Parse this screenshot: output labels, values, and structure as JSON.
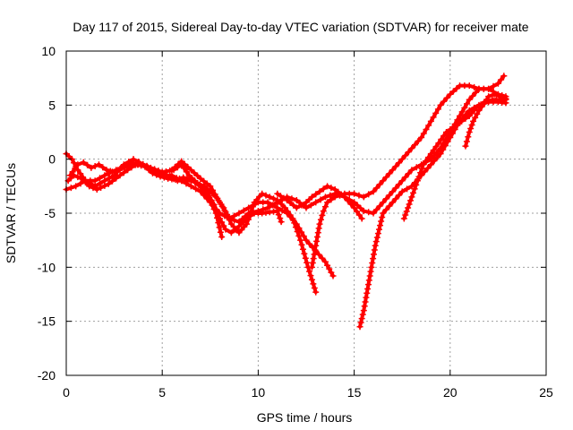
{
  "chart_data": {
    "type": "scatter",
    "title": "Day 117 of 2015, Sidereal Day-to-day VTEC variation (SDTVAR) for receiver mate",
    "xlabel": "GPS time / hours",
    "ylabel": "SDTVAR / TECUs",
    "xlim": [
      0,
      25
    ],
    "ylim": [
      -20,
      10
    ],
    "xticks": [
      0,
      5,
      10,
      15,
      20,
      25
    ],
    "yticks": [
      -20,
      -15,
      -10,
      -5,
      0,
      5,
      10
    ],
    "xtick_labels": [
      "0",
      "5",
      "10",
      "15",
      "20",
      "25"
    ],
    "ytick_labels": [
      "-20",
      "-15",
      "-10",
      "-5",
      "0",
      "5",
      "10"
    ],
    "grid": true,
    "marker": "+",
    "series": [
      {
        "color": "#ff0000",
        "tracks": [
          [
            [
              0.0,
              0.5
            ],
            [
              0.3,
              0.0
            ],
            [
              0.6,
              -1.0
            ],
            [
              1.0,
              -2.0
            ],
            [
              1.5,
              -2.5
            ],
            [
              2.0,
              -2.0
            ],
            [
              2.5,
              -1.5
            ],
            [
              3.0,
              -0.5
            ],
            [
              3.5,
              0.0
            ],
            [
              4.0,
              -0.5
            ],
            [
              4.5,
              -1.0
            ],
            [
              5.0,
              -1.5
            ],
            [
              5.5,
              -1.5
            ],
            [
              6.0,
              -2.0
            ],
            [
              6.5,
              -2.5
            ],
            [
              7.0,
              -3.0
            ],
            [
              7.5,
              -4.0
            ],
            [
              8.0,
              -5.0
            ],
            [
              8.5,
              -5.5
            ],
            [
              9.0,
              -5.0
            ],
            [
              9.5,
              -4.5
            ],
            [
              10.0,
              -4.0
            ],
            [
              10.5,
              -4.0
            ],
            [
              11.0,
              -4.5
            ],
            [
              11.5,
              -5.0
            ],
            [
              12.0,
              -6.0
            ],
            [
              12.5,
              -7.5
            ],
            [
              13.0,
              -8.5
            ],
            [
              13.5,
              -9.5
            ],
            [
              13.9,
              -10.8
            ]
          ],
          [
            [
              0.1,
              -2.0
            ],
            [
              0.4,
              -1.5
            ],
            [
              0.8,
              -1.8
            ],
            [
              1.2,
              -2.5
            ],
            [
              1.6,
              -2.8
            ],
            [
              2.2,
              -2.3
            ],
            [
              2.8,
              -1.5
            ],
            [
              3.2,
              -1.0
            ],
            [
              3.8,
              -0.3
            ],
            [
              4.4,
              -0.8
            ],
            [
              5.0,
              -1.2
            ],
            [
              5.6,
              -1.0
            ],
            [
              6.0,
              -0.5
            ],
            [
              6.4,
              -1.5
            ],
            [
              7.0,
              -2.5
            ],
            [
              7.4,
              -3.5
            ],
            [
              7.8,
              -5.0
            ],
            [
              8.1,
              -7.2
            ]
          ],
          [
            [
              0.0,
              -2.8
            ],
            [
              0.5,
              -2.5
            ],
            [
              1.0,
              -2.0
            ],
            [
              1.5,
              -2.0
            ],
            [
              2.0,
              -1.5
            ],
            [
              2.6,
              -1.0
            ],
            [
              3.0,
              -0.8
            ],
            [
              3.5,
              -0.5
            ],
            [
              4.0,
              -0.5
            ],
            [
              4.6,
              -1.0
            ],
            [
              5.2,
              -1.5
            ],
            [
              5.8,
              -2.0
            ],
            [
              6.5,
              -2.0
            ],
            [
              7.2,
              -2.5
            ],
            [
              7.8,
              -3.5
            ],
            [
              8.2,
              -4.5
            ],
            [
              8.6,
              -6.0
            ],
            [
              9.0,
              -6.8
            ],
            [
              9.4,
              -6.0
            ],
            [
              9.8,
              -4.0
            ],
            [
              10.2,
              -3.2
            ],
            [
              10.6,
              -3.5
            ],
            [
              11.0,
              -3.8
            ],
            [
              11.4,
              -4.5
            ],
            [
              11.8,
              -5.5
            ],
            [
              12.2,
              -7.5
            ],
            [
              12.6,
              -10.0
            ],
            [
              13.0,
              -12.3
            ]
          ],
          [
            [
              5.5,
              -1.0
            ],
            [
              6.0,
              -0.2
            ],
            [
              6.5,
              -1.0
            ],
            [
              7.0,
              -1.8
            ],
            [
              7.5,
              -2.5
            ],
            [
              8.0,
              -4.0
            ],
            [
              8.5,
              -5.5
            ],
            [
              9.0,
              -5.8
            ],
            [
              9.5,
              -5.0
            ],
            [
              10.0,
              -4.8
            ],
            [
              10.5,
              -4.5
            ],
            [
              11.0,
              -4.0
            ],
            [
              11.5,
              -3.5
            ],
            [
              12.0,
              -3.8
            ],
            [
              12.5,
              -4.5
            ],
            [
              13.0,
              -4.0
            ],
            [
              13.5,
              -3.5
            ],
            [
              14.0,
              -3.2
            ],
            [
              14.5,
              -3.5
            ],
            [
              15.0,
              -4.5
            ],
            [
              15.4,
              -5.5
            ]
          ],
          [
            [
              11.0,
              -3.2
            ],
            [
              11.5,
              -3.8
            ],
            [
              12.0,
              -4.5
            ],
            [
              12.5,
              -4.0
            ],
            [
              12.8,
              -3.5
            ],
            [
              13.2,
              -3.0
            ],
            [
              13.6,
              -2.5
            ],
            [
              14.0,
              -2.8
            ],
            [
              14.5,
              -3.5
            ],
            [
              15.0,
              -4.0
            ],
            [
              15.5,
              -4.8
            ],
            [
              16.0,
              -5.0
            ],
            [
              16.5,
              -4.0
            ],
            [
              17.0,
              -3.0
            ],
            [
              17.5,
              -2.0
            ],
            [
              18.0,
              -1.0
            ],
            [
              18.5,
              -0.5
            ],
            [
              19.0,
              0.0
            ],
            [
              19.5,
              1.0
            ],
            [
              20.0,
              2.5
            ],
            [
              20.5,
              4.0
            ],
            [
              21.0,
              5.5
            ],
            [
              21.5,
              6.5
            ],
            [
              22.0,
              6.5
            ],
            [
              22.5,
              6.0
            ],
            [
              22.9,
              5.8
            ]
          ],
          [
            [
              12.8,
              -10.0
            ],
            [
              13.0,
              -8.0
            ],
            [
              13.2,
              -6.0
            ],
            [
              13.4,
              -4.8
            ],
            [
              13.6,
              -4.0
            ],
            [
              14.0,
              -3.5
            ],
            [
              14.5,
              -3.2
            ],
            [
              15.0,
              -3.2
            ],
            [
              15.5,
              -3.5
            ],
            [
              16.0,
              -3.0
            ],
            [
              16.5,
              -2.0
            ],
            [
              17.0,
              -1.0
            ],
            [
              17.5,
              0.0
            ],
            [
              18.0,
              1.0
            ],
            [
              18.5,
              2.0
            ],
            [
              19.0,
              3.5
            ],
            [
              19.5,
              5.0
            ],
            [
              20.0,
              6.0
            ],
            [
              20.5,
              6.8
            ],
            [
              21.0,
              6.8
            ],
            [
              21.5,
              6.5
            ],
            [
              22.0,
              6.5
            ],
            [
              22.5,
              7.0
            ],
            [
              22.8,
              7.7
            ]
          ],
          [
            [
              15.3,
              -15.5
            ],
            [
              15.5,
              -14.0
            ],
            [
              15.7,
              -12.0
            ],
            [
              15.9,
              -10.0
            ],
            [
              16.1,
              -8.0
            ],
            [
              16.3,
              -6.5
            ],
            [
              16.5,
              -5.0
            ],
            [
              17.0,
              -4.0
            ],
            [
              17.5,
              -3.0
            ],
            [
              18.0,
              -2.5
            ],
            [
              18.5,
              -1.5
            ],
            [
              19.0,
              -0.5
            ],
            [
              19.5,
              0.5
            ],
            [
              20.0,
              2.0
            ],
            [
              20.5,
              3.5
            ],
            [
              21.0,
              4.5
            ],
            [
              21.5,
              5.0
            ],
            [
              22.0,
              5.3
            ],
            [
              22.5,
              5.3
            ],
            [
              22.9,
              5.2
            ]
          ],
          [
            [
              17.6,
              -5.5
            ],
            [
              17.8,
              -4.5
            ],
            [
              18.0,
              -3.5
            ],
            [
              18.3,
              -2.0
            ],
            [
              18.6,
              -0.5
            ],
            [
              19.0,
              0.5
            ],
            [
              19.4,
              1.5
            ],
            [
              19.8,
              2.5
            ],
            [
              20.2,
              3.0
            ],
            [
              20.6,
              3.5
            ],
            [
              21.0,
              4.0
            ],
            [
              21.4,
              4.8
            ],
            [
              21.8,
              5.3
            ],
            [
              22.2,
              5.5
            ],
            [
              22.6,
              5.5
            ],
            [
              22.9,
              5.5
            ]
          ],
          [
            [
              20.8,
              1.2
            ],
            [
              21.0,
              2.5
            ],
            [
              21.2,
              3.5
            ],
            [
              21.5,
              4.5
            ],
            [
              21.8,
              5.2
            ],
            [
              22.0,
              5.8
            ],
            [
              22.3,
              6.0
            ],
            [
              22.6,
              5.8
            ],
            [
              22.9,
              5.6
            ]
          ],
          [
            [
              0.2,
              -1.5
            ],
            [
              0.6,
              -0.5
            ],
            [
              0.9,
              -0.3
            ],
            [
              1.3,
              -0.8
            ],
            [
              1.7,
              -0.5
            ],
            [
              2.1,
              -1.0
            ],
            [
              2.5,
              -1.2
            ],
            [
              2.9,
              -0.8
            ],
            [
              3.3,
              -0.3
            ],
            [
              3.7,
              -0.5
            ],
            [
              4.1,
              -0.7
            ],
            [
              4.5,
              -1.3
            ],
            [
              4.9,
              -1.6
            ],
            [
              5.3,
              -1.8
            ],
            [
              5.7,
              -1.9
            ],
            [
              6.1,
              -1.7
            ],
            [
              6.5,
              -1.9
            ],
            [
              6.9,
              -2.4
            ],
            [
              7.3,
              -3.0
            ],
            [
              7.7,
              -4.2
            ],
            [
              8.0,
              -5.5
            ],
            [
              8.3,
              -6.5
            ],
            [
              8.6,
              -6.8
            ],
            [
              9.0,
              -6.2
            ],
            [
              9.4,
              -5.5
            ],
            [
              9.8,
              -5.0
            ],
            [
              10.2,
              -5.0
            ],
            [
              10.6,
              -4.9
            ],
            [
              11.0,
              -4.8
            ],
            [
              11.2,
              -5.8
            ]
          ]
        ]
      }
    ]
  }
}
